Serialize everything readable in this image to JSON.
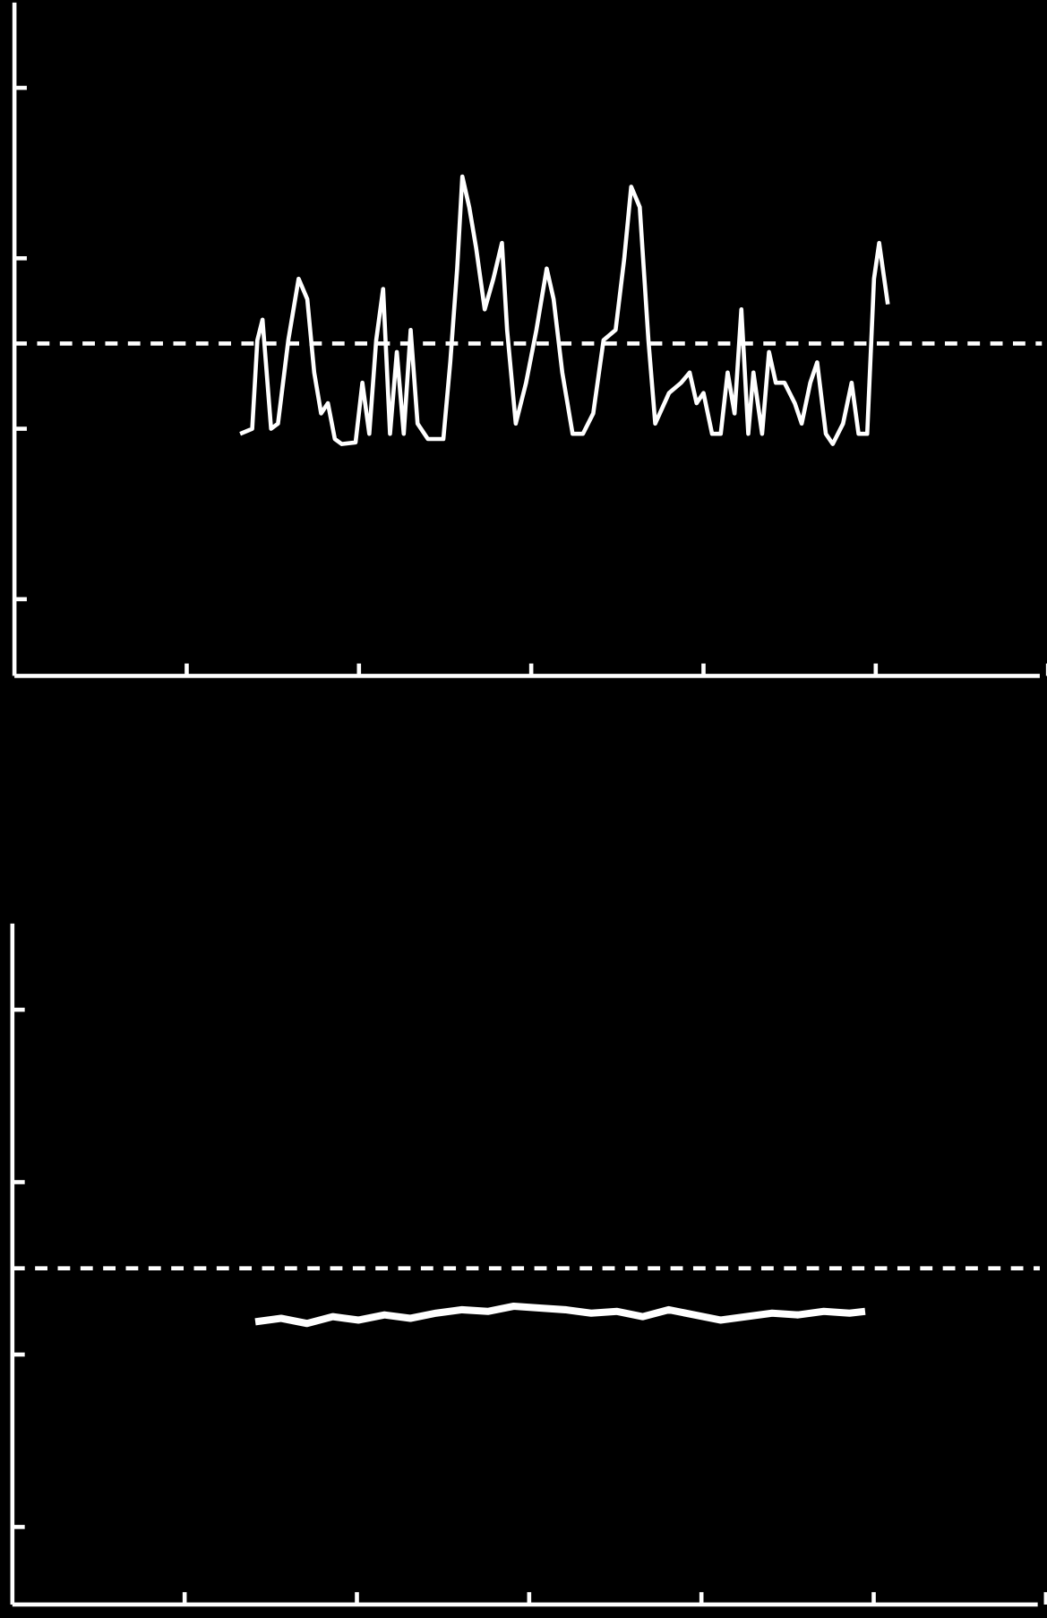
{
  "chart_data": [
    {
      "type": "line",
      "color": "#ffffff",
      "background": "#000000",
      "xlim": [
        0,
        6
      ],
      "xticks": [
        1,
        2,
        3,
        4,
        5,
        6
      ],
      "ylim": [
        0.55,
        4.5
      ],
      "yticks": [
        1,
        2,
        3,
        4
      ],
      "reference_line": 2.5,
      "x": [
        1.31,
        1.38,
        1.41,
        1.44,
        1.49,
        1.53,
        1.59,
        1.65,
        1.7,
        1.74,
        1.78,
        1.82,
        1.86,
        1.9,
        1.98,
        2.02,
        2.06,
        2.1,
        2.14,
        2.18,
        2.22,
        2.26,
        2.3,
        2.34,
        2.4,
        2.49,
        2.53,
        2.57,
        2.6,
        2.64,
        2.68,
        2.73,
        2.78,
        2.83,
        2.86,
        2.91,
        2.97,
        3.03,
        3.09,
        3.13,
        3.18,
        3.24,
        3.3,
        3.36,
        3.42,
        3.49,
        3.54,
        3.58,
        3.63,
        3.68,
        3.72,
        3.8,
        3.87,
        3.92,
        3.96,
        4.0,
        4.05,
        4.1,
        4.14,
        4.18,
        4.22,
        4.26,
        4.29,
        4.34,
        4.38,
        4.42,
        4.47,
        4.53,
        4.57,
        4.62,
        4.66,
        4.71,
        4.75,
        4.81,
        4.86,
        4.9,
        4.95,
        4.99,
        5.02,
        5.07
      ],
      "values": [
        1.97,
        2.0,
        2.52,
        2.64,
        2.0,
        2.03,
        2.52,
        2.88,
        2.76,
        2.33,
        2.09,
        2.15,
        1.94,
        1.91,
        1.92,
        2.27,
        1.97,
        2.52,
        2.82,
        1.97,
        2.45,
        1.97,
        2.58,
        2.03,
        1.94,
        1.94,
        2.39,
        2.94,
        3.48,
        3.3,
        3.06,
        2.7,
        2.88,
        3.09,
        2.58,
        2.03,
        2.27,
        2.58,
        2.94,
        2.76,
        2.33,
        1.97,
        1.97,
        2.09,
        2.52,
        2.58,
        3.0,
        3.42,
        3.3,
        2.52,
        2.03,
        2.21,
        2.27,
        2.33,
        2.15,
        2.21,
        1.97,
        1.97,
        2.33,
        2.09,
        2.7,
        1.97,
        2.33,
        1.97,
        2.45,
        2.27,
        2.27,
        2.15,
        2.03,
        2.27,
        2.39,
        1.97,
        1.91,
        2.03,
        2.27,
        1.97,
        1.97,
        2.88,
        3.09,
        2.73
      ]
    },
    {
      "type": "line",
      "color": "#ffffff",
      "background": "#000000",
      "xlim": [
        0,
        6
      ],
      "xticks": [
        1,
        2,
        3,
        4,
        5,
        6
      ],
      "ylim": [
        0.55,
        4.5
      ],
      "yticks": [
        1,
        2,
        3,
        4
      ],
      "reference_line": 2.5,
      "x": [
        1.41,
        1.56,
        1.71,
        1.86,
        2.01,
        2.16,
        2.31,
        2.46,
        2.61,
        2.76,
        2.91,
        3.06,
        3.21,
        3.36,
        3.51,
        3.66,
        3.81,
        3.96,
        4.11,
        4.26,
        4.41,
        4.56,
        4.71,
        4.86,
        4.95
      ],
      "values": [
        2.19,
        2.21,
        2.18,
        2.22,
        2.2,
        2.23,
        2.21,
        2.24,
        2.26,
        2.25,
        2.28,
        2.27,
        2.26,
        2.24,
        2.25,
        2.22,
        2.26,
        2.23,
        2.2,
        2.22,
        2.24,
        2.23,
        2.25,
        2.24,
        2.25
      ]
    }
  ]
}
